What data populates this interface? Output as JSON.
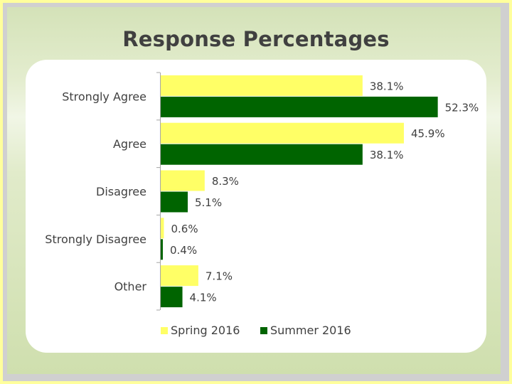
{
  "title": "Response Percentages",
  "colors": {
    "spring": "#ffff66",
    "summer": "#006400"
  },
  "chart_data": {
    "type": "bar",
    "orientation": "horizontal",
    "categories": [
      "Strongly Agree",
      "Agree",
      "Disagree",
      "Strongly Disagree",
      "Other"
    ],
    "series": [
      {
        "name": "Spring 2016",
        "values": [
          38.1,
          45.9,
          8.3,
          0.6,
          7.1
        ],
        "labels": [
          "38.1%",
          "45.9%",
          "8.3%",
          "0.6%",
          "7.1%"
        ]
      },
      {
        "name": "Summer 2016",
        "values": [
          52.3,
          38.1,
          5.1,
          0.4,
          4.1
        ],
        "labels": [
          "52.3%",
          "38.1%",
          "5.1%",
          "0.4%",
          "4.1%"
        ]
      }
    ],
    "xlim": [
      0,
      60
    ],
    "grid": false,
    "legend_position": "bottom"
  }
}
